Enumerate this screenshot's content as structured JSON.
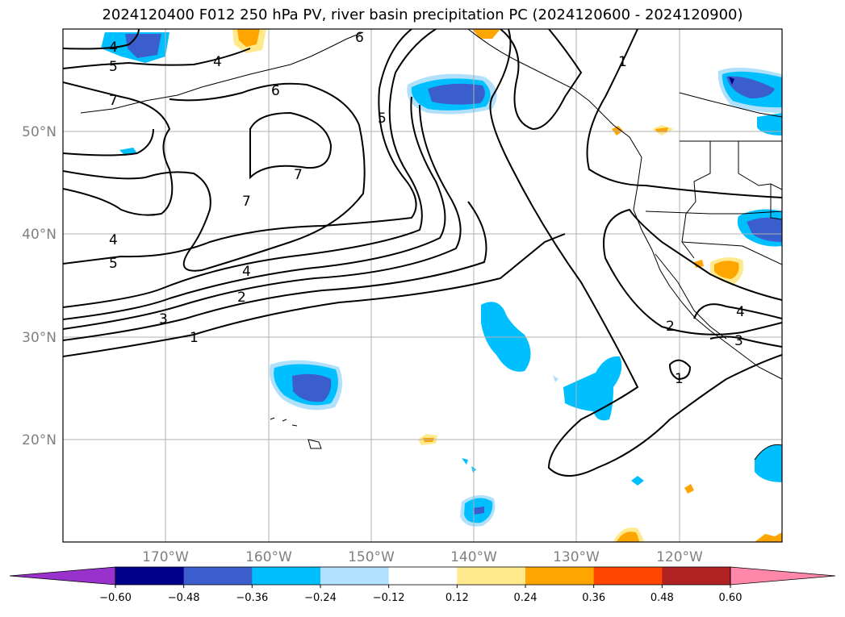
{
  "title": "2024120400 F012 250 hPa PV, river basin precipitation PC (2024120600 - 2024120900)",
  "map": {
    "lat_labels": [
      "50°N",
      "40°N",
      "30°N",
      "20°N"
    ],
    "lon_labels": [
      "170°W",
      "160°W",
      "150°W",
      "140°W",
      "130°W",
      "120°W"
    ],
    "contour_labels": [
      "4",
      "5",
      "7",
      "6",
      "4",
      "5",
      "7",
      "7",
      "4",
      "5",
      "4",
      "3",
      "2",
      "1",
      "2",
      "1",
      "3",
      "4",
      "1",
      "6"
    ],
    "colors": {
      "ocean_bg": "#ffffff",
      "grid": "#b0b0b0",
      "contour": "#000000",
      "neg_light": "#b0e0fa",
      "neg_mid": "#00bfff",
      "neg_strong": "#3a5fcd",
      "neg_max": "#00008b",
      "pos_light": "#ffe98c",
      "pos_mid": "#ffa500"
    }
  },
  "colorbar": {
    "ticks": [
      "−0.60",
      "−0.48",
      "−0.36",
      "−0.24",
      "−0.12",
      "0.12",
      "0.24",
      "0.36",
      "0.48",
      "0.60"
    ],
    "colors": [
      "#9932cc",
      "#00008b",
      "#3a5fcd",
      "#00bfff",
      "#b0e2ff",
      "#ffffff",
      "#ffe98c",
      "#ffa500",
      "#ff4500",
      "#b22222",
      "#ff88aa"
    ]
  }
}
